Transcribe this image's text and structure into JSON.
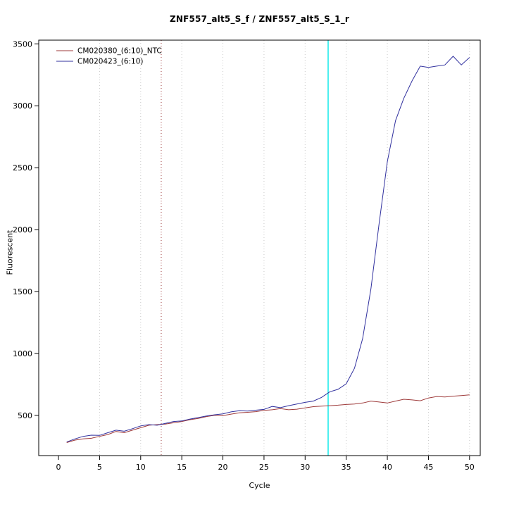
{
  "chart_data": {
    "type": "line",
    "title": "ZNF557_alt5_S_f / ZNF557_alt5_S_1_r",
    "xlabel": "Cycle",
    "ylabel": "Fluorescent",
    "xlim": [
      -2.4,
      51.3
    ],
    "ylim": [
      175,
      3530
    ],
    "x_ticks": [
      0,
      5,
      10,
      15,
      20,
      25,
      30,
      35,
      40,
      45,
      50
    ],
    "y_ticks": [
      500,
      1000,
      1500,
      2000,
      2500,
      3000,
      3500
    ],
    "grid_x": [
      5,
      10,
      15,
      20,
      25,
      30,
      35,
      40,
      45,
      50
    ],
    "grid_color": "#c9c9c9",
    "axis_color": "#000000",
    "x": [
      1,
      2,
      3,
      4,
      5,
      6,
      7,
      8,
      9,
      10,
      11,
      12,
      13,
      14,
      15,
      16,
      17,
      18,
      19,
      20,
      21,
      22,
      23,
      24,
      25,
      26,
      27,
      28,
      29,
      30,
      31,
      32,
      33,
      34,
      35,
      36,
      37,
      38,
      39,
      40,
      41,
      42,
      43,
      44,
      45,
      46,
      47,
      48,
      49,
      50
    ],
    "series": [
      {
        "name": "CM020380_(6:10)_NTC",
        "color": "#9e3a3a",
        "values": [
          280,
          300,
          310,
          315,
          330,
          345,
          370,
          360,
          380,
          400,
          420,
          425,
          430,
          440,
          450,
          465,
          475,
          490,
          500,
          498,
          510,
          520,
          525,
          530,
          540,
          545,
          555,
          545,
          550,
          560,
          570,
          575,
          578,
          582,
          588,
          592,
          600,
          615,
          608,
          600,
          615,
          630,
          625,
          618,
          640,
          652,
          648,
          655,
          660,
          665
        ]
      },
      {
        "name": "CM020423_(6:10)",
        "color": "#30309e",
        "values": [
          285,
          310,
          330,
          340,
          338,
          360,
          380,
          372,
          392,
          415,
          425,
          420,
          435,
          450,
          455,
          470,
          482,
          495,
          505,
          512,
          528,
          538,
          535,
          542,
          548,
          572,
          562,
          578,
          592,
          605,
          615,
          645,
          690,
          710,
          755,
          880,
          1120,
          1520,
          2050,
          2550,
          2880,
          3060,
          3200,
          3320,
          3310,
          3320,
          3330,
          3400,
          3330,
          3390
        ]
      }
    ],
    "vlines": [
      {
        "x": 12.5,
        "color": "#9e3a3a",
        "dash": "dotted"
      },
      {
        "x": 32.8,
        "color": "#00e8e8",
        "dash": "solid"
      }
    ],
    "legend_position": "top-left"
  }
}
